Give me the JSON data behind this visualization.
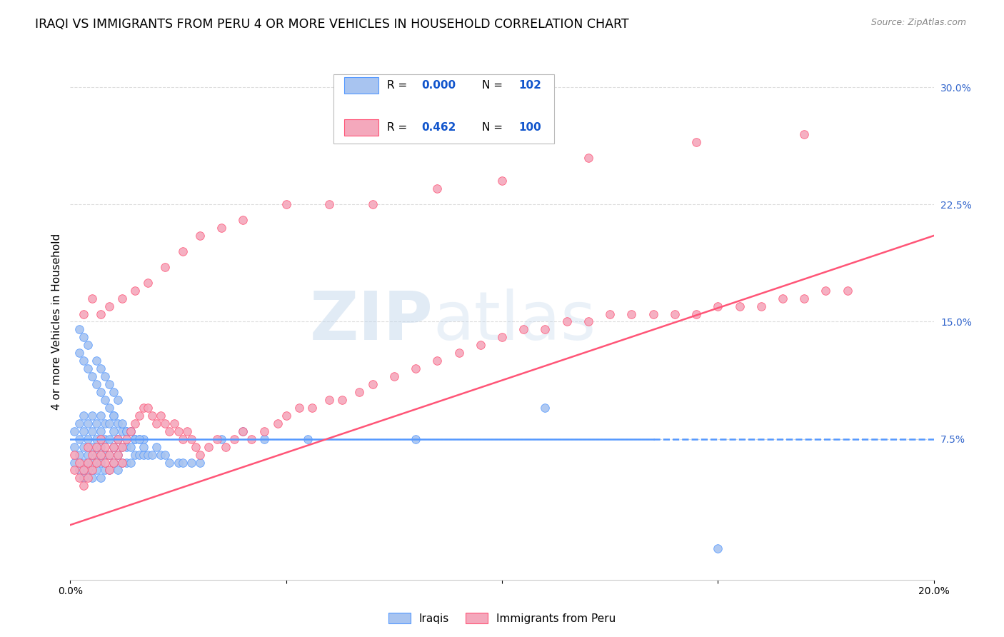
{
  "title": "IRAQI VS IMMIGRANTS FROM PERU 4 OR MORE VEHICLES IN HOUSEHOLD CORRELATION CHART",
  "source": "Source: ZipAtlas.com",
  "ylabel": "4 or more Vehicles in Household",
  "xlim": [
    0.0,
    0.2
  ],
  "ylim": [
    -0.015,
    0.315
  ],
  "xtick_positions": [
    0.0,
    0.05,
    0.1,
    0.15,
    0.2
  ],
  "xtick_labels": [
    "0.0%",
    "",
    "",
    "",
    "20.0%"
  ],
  "yticks_right": [
    0.075,
    0.15,
    0.225,
    0.3
  ],
  "ytick_labels_right": [
    "7.5%",
    "15.0%",
    "22.5%",
    "30.0%"
  ],
  "series1_color": "#a8c4f0",
  "series2_color": "#f4a8bc",
  "line1_color": "#5599ff",
  "line2_color": "#ff5577",
  "watermark_zip": "ZIP",
  "watermark_atlas": "atlas",
  "background_color": "#ffffff",
  "grid_color": "#dddddd",
  "title_fontsize": 12.5,
  "axis_label_fontsize": 11,
  "tick_fontsize": 10,
  "legend_R1": "0.000",
  "legend_N1": "102",
  "legend_R2": "0.462",
  "legend_N2": "100",
  "blue_line_solid_end": 0.135,
  "series1_x": [
    0.001,
    0.001,
    0.001,
    0.002,
    0.002,
    0.002,
    0.002,
    0.003,
    0.003,
    0.003,
    0.003,
    0.003,
    0.004,
    0.004,
    0.004,
    0.004,
    0.005,
    0.005,
    0.005,
    0.005,
    0.005,
    0.006,
    0.006,
    0.006,
    0.006,
    0.007,
    0.007,
    0.007,
    0.007,
    0.007,
    0.008,
    0.008,
    0.008,
    0.008,
    0.009,
    0.009,
    0.009,
    0.009,
    0.01,
    0.01,
    0.01,
    0.01,
    0.011,
    0.011,
    0.011,
    0.012,
    0.012,
    0.012,
    0.013,
    0.013,
    0.013,
    0.014,
    0.014,
    0.014,
    0.015,
    0.015,
    0.016,
    0.016,
    0.017,
    0.017,
    0.018,
    0.019,
    0.02,
    0.021,
    0.022,
    0.023,
    0.025,
    0.026,
    0.028,
    0.03,
    0.002,
    0.002,
    0.003,
    0.003,
    0.004,
    0.004,
    0.005,
    0.006,
    0.006,
    0.007,
    0.007,
    0.008,
    0.008,
    0.009,
    0.009,
    0.01,
    0.01,
    0.011,
    0.011,
    0.012,
    0.013,
    0.014,
    0.015,
    0.016,
    0.017,
    0.035,
    0.04,
    0.045,
    0.055,
    0.08,
    0.11,
    0.15
  ],
  "series1_y": [
    0.06,
    0.07,
    0.08,
    0.055,
    0.065,
    0.075,
    0.085,
    0.05,
    0.06,
    0.07,
    0.08,
    0.09,
    0.055,
    0.065,
    0.075,
    0.085,
    0.05,
    0.06,
    0.07,
    0.08,
    0.09,
    0.055,
    0.065,
    0.075,
    0.085,
    0.05,
    0.06,
    0.07,
    0.08,
    0.09,
    0.055,
    0.065,
    0.075,
    0.085,
    0.055,
    0.065,
    0.075,
    0.085,
    0.06,
    0.07,
    0.08,
    0.09,
    0.055,
    0.065,
    0.075,
    0.06,
    0.07,
    0.08,
    0.06,
    0.07,
    0.08,
    0.06,
    0.07,
    0.08,
    0.065,
    0.075,
    0.065,
    0.075,
    0.065,
    0.075,
    0.065,
    0.065,
    0.07,
    0.065,
    0.065,
    0.06,
    0.06,
    0.06,
    0.06,
    0.06,
    0.13,
    0.145,
    0.125,
    0.14,
    0.12,
    0.135,
    0.115,
    0.11,
    0.125,
    0.105,
    0.12,
    0.1,
    0.115,
    0.095,
    0.11,
    0.09,
    0.105,
    0.085,
    0.1,
    0.085,
    0.08,
    0.08,
    0.075,
    0.075,
    0.07,
    0.075,
    0.08,
    0.075,
    0.075,
    0.075,
    0.095,
    0.005
  ],
  "series2_x": [
    0.001,
    0.001,
    0.002,
    0.002,
    0.003,
    0.003,
    0.004,
    0.004,
    0.004,
    0.005,
    0.005,
    0.006,
    0.006,
    0.007,
    0.007,
    0.008,
    0.008,
    0.009,
    0.009,
    0.01,
    0.01,
    0.011,
    0.011,
    0.012,
    0.012,
    0.013,
    0.014,
    0.015,
    0.016,
    0.017,
    0.018,
    0.019,
    0.02,
    0.021,
    0.022,
    0.023,
    0.024,
    0.025,
    0.026,
    0.027,
    0.028,
    0.029,
    0.03,
    0.032,
    0.034,
    0.036,
    0.038,
    0.04,
    0.042,
    0.045,
    0.048,
    0.05,
    0.053,
    0.056,
    0.06,
    0.063,
    0.067,
    0.07,
    0.075,
    0.08,
    0.085,
    0.09,
    0.095,
    0.1,
    0.105,
    0.11,
    0.115,
    0.12,
    0.125,
    0.13,
    0.135,
    0.14,
    0.145,
    0.15,
    0.155,
    0.16,
    0.165,
    0.17,
    0.175,
    0.18,
    0.003,
    0.005,
    0.007,
    0.009,
    0.012,
    0.015,
    0.018,
    0.022,
    0.026,
    0.03,
    0.035,
    0.04,
    0.05,
    0.06,
    0.07,
    0.085,
    0.1,
    0.12,
    0.145,
    0.17
  ],
  "series2_y": [
    0.055,
    0.065,
    0.05,
    0.06,
    0.045,
    0.055,
    0.05,
    0.06,
    0.07,
    0.055,
    0.065,
    0.06,
    0.07,
    0.065,
    0.075,
    0.06,
    0.07,
    0.055,
    0.065,
    0.06,
    0.07,
    0.065,
    0.075,
    0.06,
    0.07,
    0.075,
    0.08,
    0.085,
    0.09,
    0.095,
    0.095,
    0.09,
    0.085,
    0.09,
    0.085,
    0.08,
    0.085,
    0.08,
    0.075,
    0.08,
    0.075,
    0.07,
    0.065,
    0.07,
    0.075,
    0.07,
    0.075,
    0.08,
    0.075,
    0.08,
    0.085,
    0.09,
    0.095,
    0.095,
    0.1,
    0.1,
    0.105,
    0.11,
    0.115,
    0.12,
    0.125,
    0.13,
    0.135,
    0.14,
    0.145,
    0.145,
    0.15,
    0.15,
    0.155,
    0.155,
    0.155,
    0.155,
    0.155,
    0.16,
    0.16,
    0.16,
    0.165,
    0.165,
    0.17,
    0.17,
    0.155,
    0.165,
    0.155,
    0.16,
    0.165,
    0.17,
    0.175,
    0.185,
    0.195,
    0.205,
    0.21,
    0.215,
    0.225,
    0.225,
    0.225,
    0.235,
    0.24,
    0.255,
    0.265,
    0.27
  ]
}
